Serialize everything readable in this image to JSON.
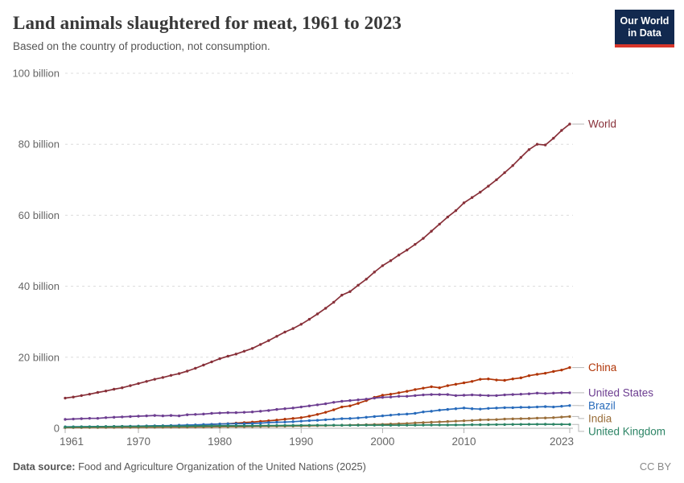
{
  "header": {
    "title": "Land animals slaughtered for meat, 1961 to 2023",
    "subtitle": "Based on the country of production, not consumption.",
    "logo": {
      "line1": "Our World",
      "line2": "in Data",
      "bg_color": "#12294F",
      "stripe_color": "#D8362A",
      "text_color": "#FFFFFF"
    }
  },
  "footer": {
    "source_label": "Data source:",
    "source_text": " Food and Agriculture Organization of the United Nations (2025)",
    "license": "CC BY"
  },
  "chart_data": {
    "type": "line",
    "title": "Land animals slaughtered for meat, 1961 to 2023",
    "subtitle": "Based on the country of production, not consumption.",
    "xlabel": "",
    "ylabel": "",
    "unit": "billion animals",
    "xlim": [
      1961,
      2023
    ],
    "ylim": [
      0,
      100
    ],
    "x_ticks": [
      1961,
      1970,
      1980,
      1990,
      2000,
      2010,
      2023
    ],
    "y_ticks": [
      {
        "value": 0,
        "label": "0"
      },
      {
        "value": 20,
        "label": "20 billion"
      },
      {
        "value": 40,
        "label": "40 billion"
      },
      {
        "value": 60,
        "label": "60 billion"
      },
      {
        "value": 80,
        "label": "80 billion"
      },
      {
        "value": 100,
        "label": "100 billion"
      }
    ],
    "grid": "horizontal-dashed",
    "legend_position": "right-end-labels",
    "axis_color": "#b0b0b0",
    "grid_color": "#dcdcdc",
    "tick_label_color": "#666666",
    "series": [
      {
        "name": "World",
        "color": "#883039",
        "values": [
          8.5,
          8.8,
          9.2,
          9.6,
          10.1,
          10.5,
          11,
          11.4,
          12,
          12.6,
          13.2,
          13.8,
          14.3,
          14.9,
          15.4,
          16.1,
          16.9,
          17.8,
          18.7,
          19.6,
          20.3,
          20.9,
          21.7,
          22.5,
          23.6,
          24.7,
          25.9,
          27.1,
          28.1,
          29.3,
          30.7,
          32.2,
          33.8,
          35.5,
          37.5,
          38.5,
          40.3,
          42,
          44,
          45.8,
          47.2,
          48.8,
          50.2,
          51.8,
          53.5,
          55.5,
          57.5,
          59.5,
          61.3,
          63.5,
          65,
          66.5,
          68.2,
          70,
          72,
          74,
          76.3,
          78.5,
          80,
          79.8,
          81.7,
          83.9,
          85.7
        ]
      },
      {
        "name": "China",
        "color": "#B13507",
        "values": [
          0.25,
          0.27,
          0.3,
          0.32,
          0.35,
          0.38,
          0.4,
          0.42,
          0.45,
          0.5,
          0.55,
          0.6,
          0.65,
          0.7,
          0.75,
          0.8,
          0.85,
          0.95,
          1.1,
          1.2,
          1.3,
          1.45,
          1.6,
          1.75,
          1.95,
          2.1,
          2.3,
          2.55,
          2.75,
          3,
          3.4,
          3.9,
          4.5,
          5.2,
          6,
          6.3,
          7,
          7.8,
          8.7,
          9.3,
          9.6,
          10,
          10.4,
          10.9,
          11.3,
          11.7,
          11.4,
          12,
          12.4,
          12.8,
          13.2,
          13.8,
          13.9,
          13.6,
          13.5,
          13.9,
          14.2,
          14.8,
          15.2,
          15.5,
          16,
          16.4,
          17.1
        ]
      },
      {
        "name": "United States",
        "color": "#6D3E91",
        "values": [
          2.5,
          2.6,
          2.7,
          2.8,
          2.8,
          3,
          3.1,
          3.2,
          3.3,
          3.4,
          3.5,
          3.6,
          3.5,
          3.6,
          3.5,
          3.8,
          3.9,
          4,
          4.2,
          4.3,
          4.4,
          4.4,
          4.5,
          4.6,
          4.8,
          5,
          5.3,
          5.5,
          5.7,
          6,
          6.3,
          6.6,
          6.9,
          7.3,
          7.6,
          7.8,
          8,
          8.2,
          8.5,
          8.7,
          8.8,
          9,
          9,
          9.2,
          9.4,
          9.5,
          9.5,
          9.5,
          9.2,
          9.3,
          9.4,
          9.3,
          9.2,
          9.2,
          9.4,
          9.5,
          9.6,
          9.7,
          9.9,
          9.8,
          9.9,
          10,
          10
        ]
      },
      {
        "name": "Brazil",
        "color": "#286BBB",
        "values": [
          0.4,
          0.42,
          0.44,
          0.45,
          0.47,
          0.5,
          0.52,
          0.54,
          0.57,
          0.6,
          0.65,
          0.7,
          0.72,
          0.78,
          0.85,
          0.9,
          0.95,
          1.05,
          1.1,
          1.2,
          1.25,
          1.3,
          1.3,
          1.35,
          1.45,
          1.6,
          1.7,
          1.75,
          1.85,
          2,
          2.15,
          2.25,
          2.4,
          2.55,
          2.7,
          2.75,
          2.9,
          3.1,
          3.3,
          3.5,
          3.7,
          3.9,
          4,
          4.2,
          4.6,
          4.8,
          5.1,
          5.3,
          5.5,
          5.7,
          5.5,
          5.4,
          5.6,
          5.7,
          5.8,
          5.8,
          5.9,
          5.9,
          6,
          6.1,
          6,
          6.2,
          6.4
        ]
      },
      {
        "name": "India",
        "color": "#996D39",
        "values": [
          0.2,
          0.21,
          0.21,
          0.22,
          0.22,
          0.23,
          0.24,
          0.25,
          0.25,
          0.26,
          0.27,
          0.28,
          0.29,
          0.3,
          0.3,
          0.32,
          0.33,
          0.35,
          0.36,
          0.38,
          0.4,
          0.42,
          0.44,
          0.47,
          0.5,
          0.53,
          0.56,
          0.59,
          0.62,
          0.65,
          0.69,
          0.73,
          0.77,
          0.81,
          0.85,
          0.9,
          0.95,
          1,
          1.05,
          1.1,
          1.2,
          1.3,
          1.35,
          1.5,
          1.6,
          1.7,
          1.8,
          1.9,
          2,
          2.1,
          2.2,
          2.35,
          2.4,
          2.45,
          2.6,
          2.65,
          2.7,
          2.75,
          2.85,
          2.9,
          3,
          3.15,
          3.3
        ]
      },
      {
        "name": "United Kingdom",
        "color": "#2C8465",
        "values": [
          0.35,
          0.38,
          0.4,
          0.42,
          0.45,
          0.47,
          0.5,
          0.52,
          0.53,
          0.55,
          0.57,
          0.58,
          0.6,
          0.62,
          0.6,
          0.62,
          0.64,
          0.66,
          0.68,
          0.7,
          0.71,
          0.72,
          0.73,
          0.73,
          0.75,
          0.76,
          0.78,
          0.8,
          0.8,
          0.82,
          0.84,
          0.86,
          0.85,
          0.87,
          0.85,
          0.84,
          0.86,
          0.88,
          0.87,
          0.88,
          0.85,
          0.88,
          0.87,
          0.89,
          0.9,
          0.92,
          0.93,
          0.92,
          0.94,
          0.96,
          0.99,
          1,
          1.02,
          1.04,
          1.06,
          1.08,
          1.1,
          1.12,
          1.13,
          1.14,
          1.12,
          1.1,
          1.08
        ]
      }
    ]
  }
}
